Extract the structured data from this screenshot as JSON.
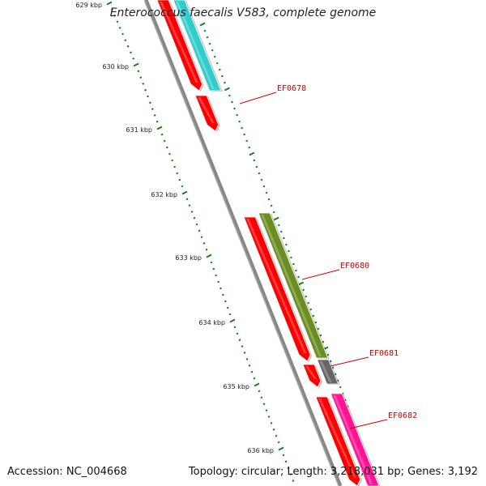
{
  "title": "Enterococcus faecalis V583, complete genome",
  "footer": {
    "accession": "Accession: NC_004668",
    "summary": "Topology: circular; Length: 3,218,031 bp; Genes: 3,192"
  },
  "ruler": {
    "unit": "kbp",
    "ticks": [
      {
        "label": "629 kbp"
      },
      {
        "label": "630 kbp"
      },
      {
        "label": "631 kbp"
      },
      {
        "label": "632 kbp"
      },
      {
        "label": "633 kbp"
      },
      {
        "label": "634 kbp"
      },
      {
        "label": "635 kbp"
      },
      {
        "label": "636 kbp"
      }
    ]
  },
  "genes": [
    {
      "name": "",
      "track": "cds",
      "color": "#ff0000"
    },
    {
      "name": "",
      "track": "gene",
      "color": "#33cccc"
    },
    {
      "name": "EF0678",
      "track": "cds",
      "color": "#ff0000"
    },
    {
      "name": "EF0680",
      "track": "cds",
      "color": "#ff0000"
    },
    {
      "name": "",
      "track": "gene",
      "color": "#6b8e23"
    },
    {
      "name": "EF0681",
      "track": "cds",
      "color": "#ff0000"
    },
    {
      "name": "",
      "track": "gene",
      "color": "#666666"
    },
    {
      "name": "EF0682",
      "track": "cds",
      "color": "#ff0000"
    },
    {
      "name": "",
      "track": "gene",
      "color": "#ff1493"
    }
  ],
  "colors": {
    "backbone": "#888888",
    "tick": "#1a7a1a",
    "label": "#cc0000"
  }
}
